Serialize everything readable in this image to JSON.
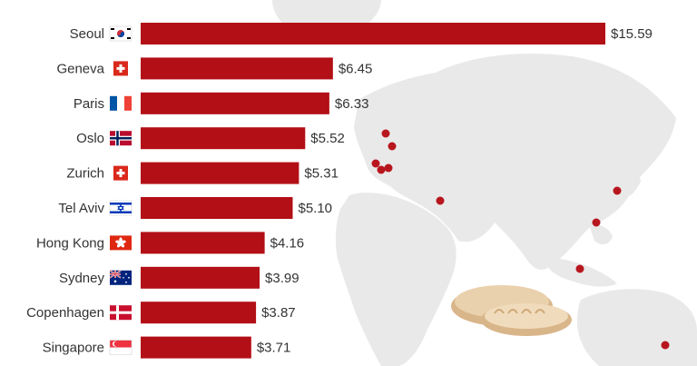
{
  "chart_data": {
    "type": "bar",
    "orientation": "horizontal",
    "title": "",
    "xlabel": "",
    "ylabel": "",
    "categories": [
      "Seoul",
      "Geneva",
      "Paris",
      "Oslo",
      "Zurich",
      "Tel Aviv",
      "Hong Kong",
      "Sydney",
      "Copenhagen",
      "Singapore"
    ],
    "values": [
      15.59,
      6.45,
      6.33,
      5.52,
      5.31,
      5.1,
      4.16,
      3.99,
      3.87,
      3.71
    ],
    "value_labels": [
      "$15.59",
      "$6.45",
      "$6.33",
      "$5.52",
      "$5.31",
      "$5.10",
      "$4.16",
      "$3.99",
      "$3.87",
      "$3.71"
    ],
    "flag_icons": [
      "south-korea-flag-icon",
      "switzerland-flag-icon",
      "france-flag-icon",
      "norway-flag-icon",
      "switzerland-flag-icon",
      "israel-flag-icon",
      "hong-kong-flag-icon",
      "australia-flag-icon",
      "denmark-flag-icon",
      "singapore-flag-icon"
    ],
    "bar_color": "#b30f16",
    "grid": false,
    "legend": "none"
  },
  "background": {
    "map_color": "#e9e9e9",
    "marker_color": "#b8161d",
    "illustration_icon": "bread-loaf-icon"
  }
}
